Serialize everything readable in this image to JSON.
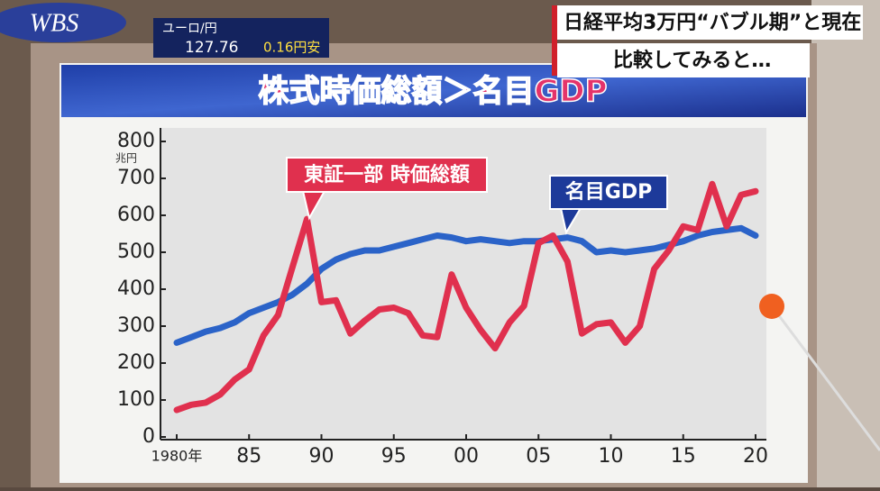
{
  "header": {
    "logo": "WBS",
    "currency_pair": "ユーロ/円",
    "rate": "127.76",
    "change": "0.16円安",
    "headline": "日経平均3万円“バブル期”と現在",
    "subheadline": "比較してみると…"
  },
  "chart_data": {
    "type": "line",
    "title": "株式時価総額＞名目GDP",
    "y_unit": "兆円",
    "x": [
      1980,
      1981,
      1982,
      1983,
      1984,
      1985,
      1986,
      1987,
      1988,
      1989,
      1990,
      1991,
      1992,
      1993,
      1994,
      1995,
      1996,
      1997,
      1998,
      1999,
      2000,
      2001,
      2002,
      2003,
      2004,
      2005,
      2006,
      2007,
      2008,
      2009,
      2010,
      2011,
      2012,
      2013,
      2014,
      2015,
      2016,
      2017,
      2018,
      2019,
      2020
    ],
    "series": [
      {
        "name": "名目GDP",
        "color": "#2b63c8",
        "values": [
          255,
          270,
          285,
          295,
          310,
          335,
          350,
          365,
          385,
          415,
          455,
          480,
          495,
          505,
          505,
          515,
          525,
          535,
          545,
          540,
          530,
          535,
          530,
          525,
          530,
          530,
          535,
          540,
          530,
          500,
          505,
          500,
          505,
          510,
          520,
          530,
          545,
          555,
          560,
          565,
          545
        ]
      },
      {
        "name": "東証一部 時価総額",
        "color": "#e0304e",
        "values": [
          73,
          87,
          93,
          115,
          155,
          183,
          275,
          330,
          460,
          590,
          365,
          370,
          280,
          315,
          345,
          350,
          335,
          275,
          270,
          440,
          350,
          290,
          240,
          310,
          355,
          525,
          545,
          475,
          280,
          305,
          310,
          255,
          300,
          455,
          505,
          570,
          560,
          685,
          570,
          655,
          665
        ]
      }
    ],
    "xlim": [
      1980,
      2020
    ],
    "ylim": [
      0,
      800
    ],
    "xticks": [
      {
        "value": 1980,
        "label": "1980年"
      },
      {
        "value": 1985,
        "label": "85"
      },
      {
        "value": 1990,
        "label": "90"
      },
      {
        "value": 1995,
        "label": "95"
      },
      {
        "value": 2000,
        "label": "00"
      },
      {
        "value": 2005,
        "label": "05"
      },
      {
        "value": 2010,
        "label": "10"
      },
      {
        "value": 2015,
        "label": "15"
      },
      {
        "value": 2020,
        "label": "20"
      }
    ],
    "yticks": [
      0,
      100,
      200,
      300,
      400,
      500,
      600,
      700,
      800
    ],
    "grid": false
  }
}
